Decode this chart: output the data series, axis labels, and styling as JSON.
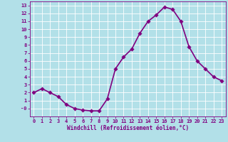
{
  "x": [
    0,
    1,
    2,
    3,
    4,
    5,
    6,
    7,
    8,
    9,
    10,
    11,
    12,
    13,
    14,
    15,
    16,
    17,
    18,
    19,
    20,
    21,
    22,
    23
  ],
  "y": [
    2.0,
    2.5,
    2.0,
    1.5,
    0.5,
    0.0,
    -0.2,
    -0.3,
    -0.3,
    1.2,
    5.0,
    6.5,
    7.5,
    9.5,
    11.0,
    11.8,
    12.8,
    12.5,
    11.0,
    7.8,
    6.0,
    5.0,
    4.0,
    3.5
  ],
  "line_color": "#800080",
  "marker_color": "#800080",
  "bg_color": "#b2e0e8",
  "grid_color": "#ffffff",
  "xlabel": "Windchill (Refroidissement éolien,°C)",
  "xlim": [
    -0.5,
    23.5
  ],
  "ylim": [
    -1.0,
    13.5
  ],
  "yticks": [
    13,
    12,
    11,
    10,
    9,
    8,
    7,
    6,
    5,
    4,
    3,
    2,
    1,
    0
  ],
  "ytick_labels": [
    "13",
    "12",
    "11",
    "10",
    "9",
    "8",
    "7",
    "6",
    "5",
    "4",
    "3",
    "2",
    "1",
    "-0"
  ],
  "xticks": [
    0,
    1,
    2,
    3,
    4,
    5,
    6,
    7,
    8,
    9,
    10,
    11,
    12,
    13,
    14,
    15,
    16,
    17,
    18,
    19,
    20,
    21,
    22,
    23
  ],
  "font_family": "monospace",
  "linewidth": 1.2,
  "markersize": 2.8,
  "tick_fontsize": 5.0,
  "xlabel_fontsize": 5.5
}
